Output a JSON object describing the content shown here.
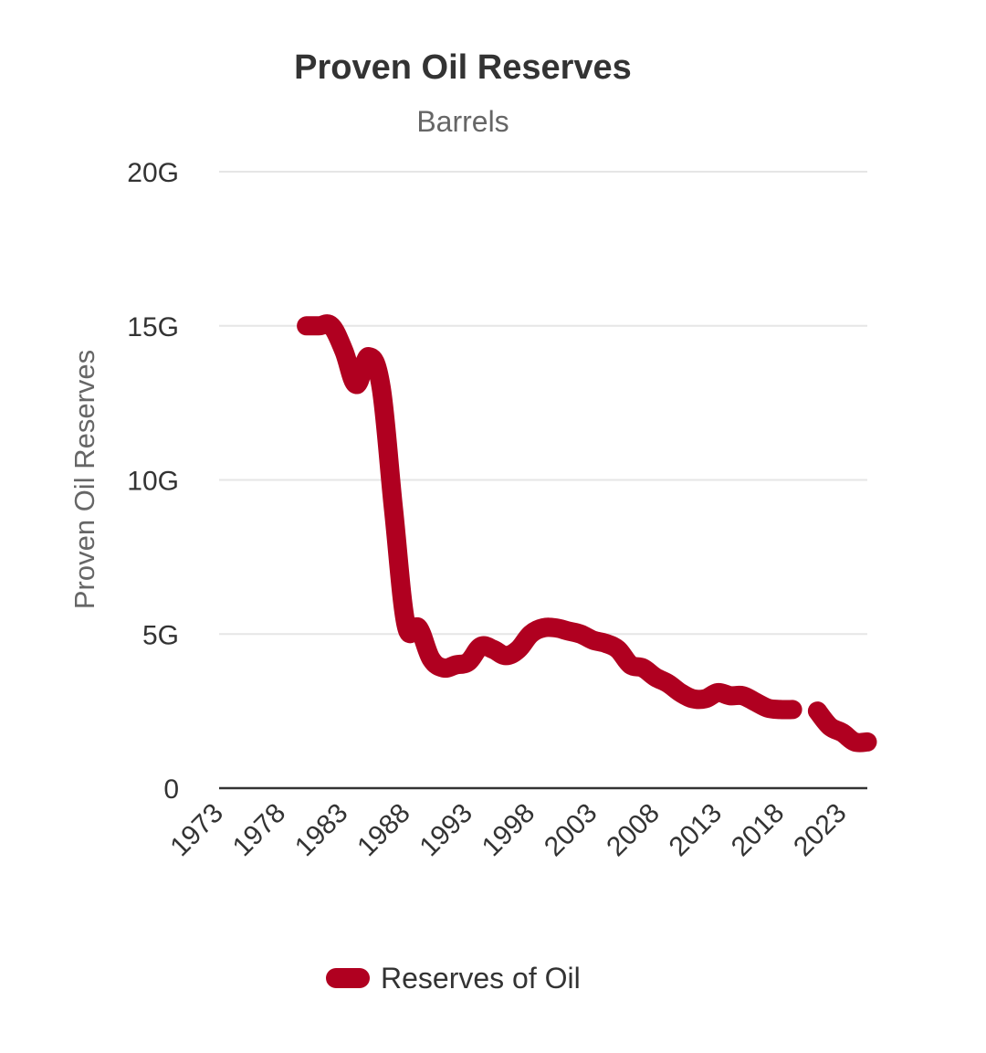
{
  "chart_data": {
    "type": "line",
    "title": "Proven Oil Reserves",
    "subtitle": "Barrels",
    "xlabel": "",
    "ylabel": "Proven Oil Reserves",
    "xlim": [
      1973,
      2025
    ],
    "ylim": [
      0,
      20
    ],
    "x_ticks": [
      "1973",
      "1978",
      "1983",
      "1988",
      "1993",
      "1998",
      "2003",
      "2008",
      "2013",
      "2018",
      "2023"
    ],
    "y_ticks": [
      "0",
      "5G",
      "10G",
      "15G",
      "20G"
    ],
    "y_tick_values": [
      0,
      5,
      10,
      15,
      20
    ],
    "grid": true,
    "legend_position": "bottom",
    "series": [
      {
        "name": "Reserves of Oil",
        "color": "#b00020",
        "unit": "billion barrels",
        "x": [
          1980,
          1981,
          1982,
          1983,
          1984,
          1985,
          1986,
          1987,
          1988,
          1989,
          1990,
          1991,
          1992,
          1993,
          1994,
          1995,
          1996,
          1997,
          1998,
          1999,
          2000,
          2001,
          2002,
          2003,
          2004,
          2005,
          2006,
          2007,
          2008,
          2009,
          2010,
          2011,
          2012,
          2013,
          2014,
          2015,
          2016,
          2017,
          2018,
          2019,
          2020,
          2021,
          2022,
          2023,
          2024,
          2025
        ],
        "values": [
          15.0,
          15.0,
          15.0,
          14.2,
          13.1,
          14.0,
          13.0,
          9.0,
          5.3,
          5.2,
          4.2,
          3.9,
          4.0,
          4.1,
          4.6,
          4.5,
          4.3,
          4.5,
          5.0,
          5.2,
          5.2,
          5.1,
          5.0,
          4.8,
          4.7,
          4.5,
          4.0,
          3.9,
          3.6,
          3.4,
          3.1,
          2.9,
          2.9,
          3.1,
          3.0,
          3.0,
          2.8,
          2.6,
          2.55,
          2.55,
          null,
          2.5,
          2.0,
          1.8,
          1.5,
          1.5
        ]
      }
    ]
  }
}
